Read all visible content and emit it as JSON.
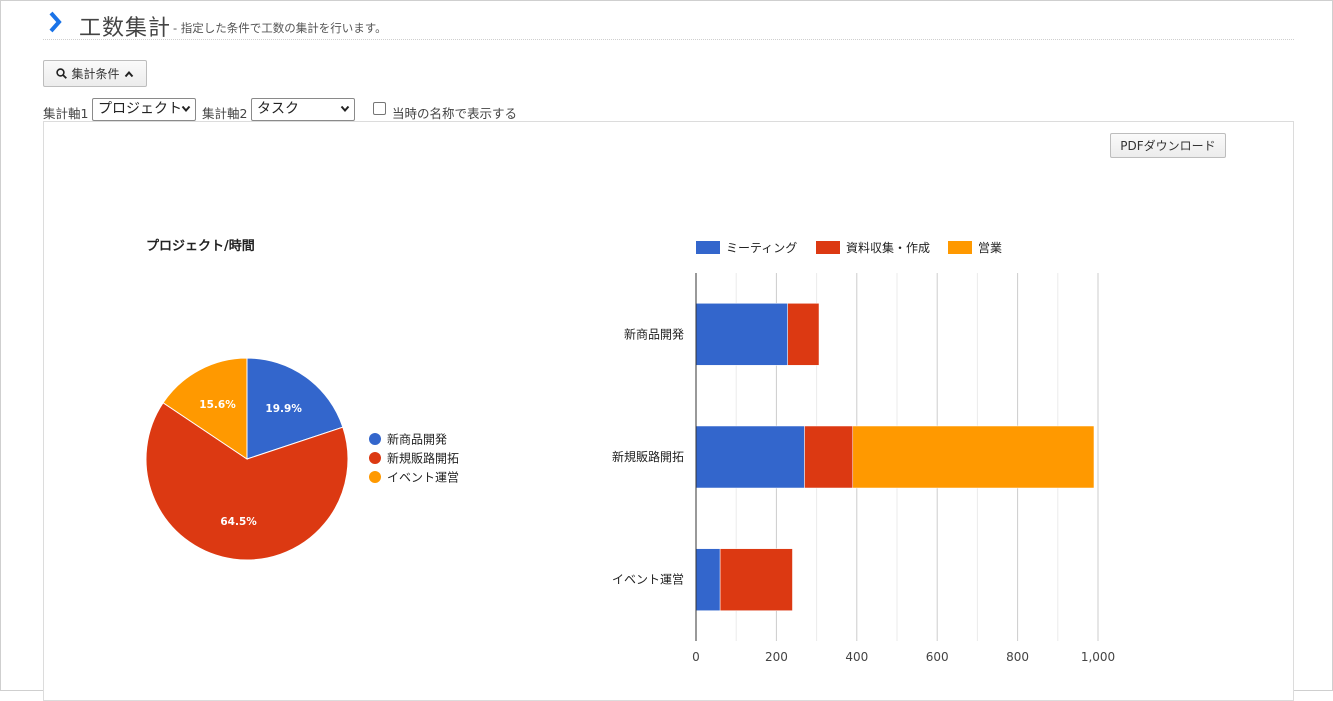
{
  "page": {
    "title": "工数集計",
    "subtitle": "- 指定した条件で工数の集計を行います。"
  },
  "conditions": {
    "toggle_label": "集計条件",
    "axis1_label": "集計軸1",
    "axis1_value": "プロジェクト",
    "axis2_label": "集計軸2",
    "axis2_value": "タスク",
    "checkbox_label": "当時の名称で表示する",
    "checkbox_checked": false
  },
  "toolbar": {
    "pdf_label": "PDFダウンロード"
  },
  "colors": {
    "blue": "#3366cc",
    "red": "#dc3912",
    "orange": "#ff9900",
    "accent": "#1a73e8"
  },
  "chart_data": [
    {
      "type": "pie",
      "title": "プロジェクト/時間",
      "categories": [
        "新商品開発",
        "新規販路開拓",
        "イベント運営"
      ],
      "values": [
        19.9,
        64.5,
        15.6
      ],
      "data_labels": [
        "19.9%",
        "64.5%",
        "15.6%"
      ],
      "colors": [
        "#3366cc",
        "#dc3912",
        "#ff9900"
      ],
      "legend": "right"
    },
    {
      "type": "bar",
      "orientation": "horizontal",
      "stacked": true,
      "categories": [
        "新商品開発",
        "新規販路開拓",
        "イベント運営"
      ],
      "series": [
        {
          "name": "ミーティング",
          "values": [
            228,
            270,
            60
          ],
          "color": "#3366cc"
        },
        {
          "name": "資料収集・作成",
          "values": [
            78,
            120,
            180
          ],
          "color": "#dc3912"
        },
        {
          "name": "営業",
          "values": [
            0,
            600,
            0
          ],
          "color": "#ff9900"
        }
      ],
      "xlim": [
        0,
        1000
      ],
      "xticks": [
        0,
        200,
        400,
        600,
        800,
        1000
      ],
      "xtick_labels": [
        "0",
        "200",
        "400",
        "600",
        "800",
        "1,000"
      ],
      "grid": true,
      "legend": "top"
    }
  ]
}
